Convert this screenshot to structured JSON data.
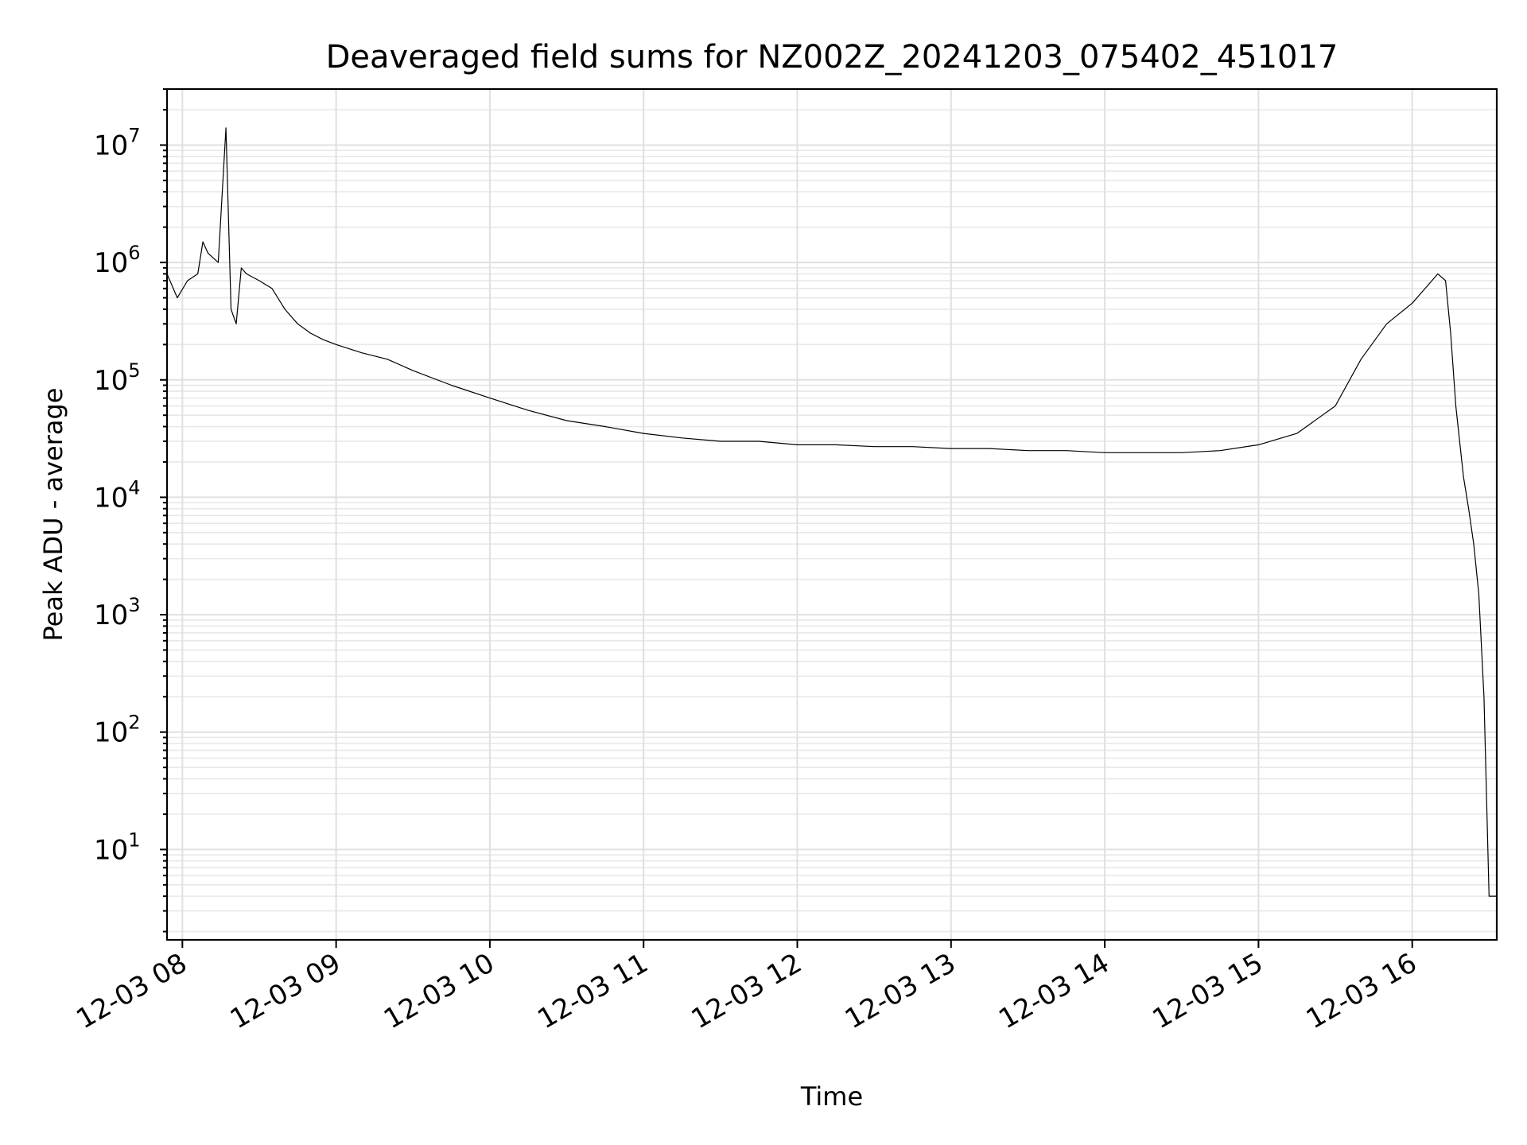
{
  "chart_data": {
    "type": "line",
    "title": "Deaveraged field sums for NZ002Z_20241203_075402_451017",
    "xlabel": "Time",
    "ylabel": "Peak ADU - average",
    "yscale": "log",
    "ylim": [
      1.7,
      30000000
    ],
    "xlim": [
      "12-03 07:54",
      "12-03 16:33"
    ],
    "grid": true,
    "legend": "none",
    "x_ticks": [
      "12-03 08",
      "12-03 09",
      "12-03 10",
      "12-03 11",
      "12-03 12",
      "12-03 13",
      "12-03 14",
      "12-03 15",
      "12-03 16"
    ],
    "y_ticks": [
      {
        "base": "10",
        "exp": "1"
      },
      {
        "base": "10",
        "exp": "2"
      },
      {
        "base": "10",
        "exp": "3"
      },
      {
        "base": "10",
        "exp": "4"
      },
      {
        "base": "10",
        "exp": "5"
      },
      {
        "base": "10",
        "exp": "6"
      },
      {
        "base": "10",
        "exp": "7"
      }
    ],
    "series": [
      {
        "color": "#000000",
        "x": [
          "12-03 07:54",
          "12-03 07:58",
          "12-03 08:02",
          "12-03 08:06",
          "12-03 08:08",
          "12-03 08:10",
          "12-03 08:14",
          "12-03 08:17",
          "12-03 08:19",
          "12-03 08:21",
          "12-03 08:23",
          "12-03 08:25",
          "12-03 08:30",
          "12-03 08:35",
          "12-03 08:40",
          "12-03 08:45",
          "12-03 08:50",
          "12-03 08:55",
          "12-03 09:00",
          "12-03 09:10",
          "12-03 09:20",
          "12-03 09:30",
          "12-03 09:45",
          "12-03 10:00",
          "12-03 10:15",
          "12-03 10:30",
          "12-03 10:45",
          "12-03 11:00",
          "12-03 11:15",
          "12-03 11:30",
          "12-03 11:45",
          "12-03 12:00",
          "12-03 12:15",
          "12-03 12:30",
          "12-03 12:45",
          "12-03 13:00",
          "12-03 13:15",
          "12-03 13:30",
          "12-03 13:45",
          "12-03 14:00",
          "12-03 14:15",
          "12-03 14:30",
          "12-03 14:45",
          "12-03 15:00",
          "12-03 15:15",
          "12-03 15:30",
          "12-03 15:40",
          "12-03 15:50",
          "12-03 16:00",
          "12-03 16:05",
          "12-03 16:10",
          "12-03 16:13",
          "12-03 16:15",
          "12-03 16:17",
          "12-03 16:20",
          "12-03 16:22",
          "12-03 16:24",
          "12-03 16:26",
          "12-03 16:28",
          "12-03 16:30",
          "12-03 16:31",
          "12-03 16:33"
        ],
        "y": [
          800000,
          500000,
          700000,
          800000,
          1500000,
          1200000,
          1000000,
          14000000,
          400000,
          300000,
          900000,
          800000,
          700000,
          600000,
          400000,
          300000,
          250000,
          220000,
          200000,
          170000,
          150000,
          120000,
          90000,
          70000,
          55000,
          45000,
          40000,
          35000,
          32000,
          30000,
          30000,
          28000,
          28000,
          27000,
          27000,
          26000,
          26000,
          25000,
          25000,
          24000,
          24000,
          24000,
          25000,
          28000,
          35000,
          60000,
          150000,
          300000,
          450000,
          600000,
          800000,
          700000,
          250000,
          60000,
          15000,
          8000,
          4000,
          1500,
          200,
          4,
          4,
          4
        ]
      }
    ]
  }
}
